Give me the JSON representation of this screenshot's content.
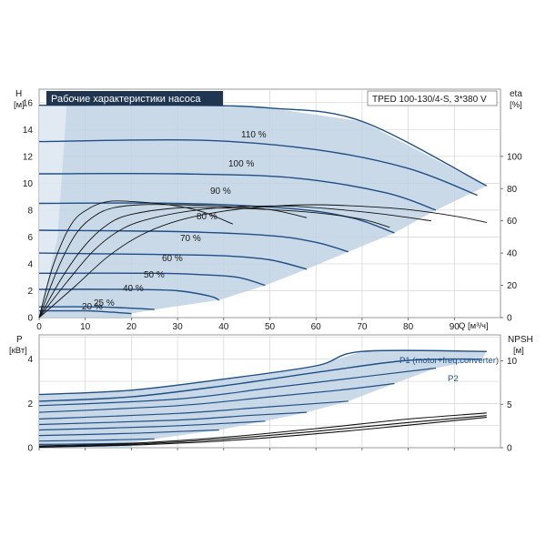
{
  "title": "Рабочие характеристики насоса",
  "model": "TPED 100-130/4-S, 3*380 V",
  "colors": {
    "head": "#1e4f86",
    "area": "#bfd2e4",
    "eff": "#111111",
    "title_bg": "#1f3550"
  },
  "chart_data": [
    {
      "type": "line",
      "name": "head",
      "y_axis_label": "H",
      "y_axis_unit": "[м]",
      "right_axis_label": "eta",
      "right_axis_unit": "[%]",
      "x_axis_label": "Q [м³/ч]",
      "xlim": [
        0,
        100
      ],
      "ylim": [
        0,
        17
      ],
      "x_ticks": [
        0,
        10,
        20,
        30,
        40,
        50,
        60,
        70,
        80,
        90
      ],
      "y_ticks": [
        0,
        2,
        4,
        6,
        8,
        10,
        12,
        14,
        16
      ],
      "right_ticks": [
        0,
        20,
        40,
        60,
        80,
        100
      ],
      "grid": true,
      "speed_curves": [
        {
          "label": "110 %",
          "points": [
            [
              0,
              15.8
            ],
            [
              30,
              15.8
            ],
            [
              50,
              15.6
            ],
            [
              70,
              14.6
            ],
            [
              97,
              9.8
            ]
          ]
        },
        {
          "label": "100 %",
          "points": [
            [
              0,
              13.1
            ],
            [
              35,
              13.2
            ],
            [
              60,
              12.5
            ],
            [
              80,
              11.1
            ],
            [
              95,
              9.1
            ]
          ]
        },
        {
          "label": "90 %",
          "points": [
            [
              0,
              10.7
            ],
            [
              30,
              10.7
            ],
            [
              55,
              10.4
            ],
            [
              75,
              9.3
            ],
            [
              86,
              8.0
            ]
          ]
        },
        {
          "label": "80 %",
          "points": [
            [
              0,
              8.5
            ],
            [
              30,
              8.5
            ],
            [
              55,
              8.1
            ],
            [
              68,
              7.4
            ],
            [
              77,
              6.3
            ]
          ]
        },
        {
          "label": "70 %",
          "points": [
            [
              0,
              6.5
            ],
            [
              30,
              6.4
            ],
            [
              50,
              6.1
            ],
            [
              60,
              5.6
            ],
            [
              67,
              4.9
            ]
          ]
        },
        {
          "label": "60 %",
          "points": [
            [
              0,
              4.8
            ],
            [
              25,
              4.7
            ],
            [
              40,
              4.6
            ],
            [
              50,
              4.3
            ],
            [
              58,
              3.6
            ]
          ]
        },
        {
          "label": "50 %",
          "points": [
            [
              0,
              3.3
            ],
            [
              25,
              3.3
            ],
            [
              35,
              3.2
            ],
            [
              43,
              3.0
            ],
            [
              49,
              2.4
            ]
          ]
        },
        {
          "label": "40 %",
          "points": [
            [
              0,
              2.1
            ],
            [
              20,
              2.1
            ],
            [
              30,
              2.0
            ],
            [
              37,
              1.6
            ],
            [
              39,
              1.3
            ]
          ]
        },
        {
          "label": "25 %",
          "points": [
            [
              0,
              0.8
            ],
            [
              12,
              0.8
            ],
            [
              20,
              0.7
            ],
            [
              25,
              0.6
            ]
          ]
        },
        {
          "label": "20 %",
          "points": [
            [
              0,
              0.5
            ],
            [
              10,
              0.5
            ],
            [
              16,
              0.4
            ],
            [
              20,
              0.3
            ]
          ]
        }
      ],
      "efficiency_curves": [
        [
          [
            0,
            0
          ],
          [
            5,
            25
          ],
          [
            10,
            45
          ],
          [
            15,
            58
          ],
          [
            20,
            64
          ],
          [
            30,
            68
          ],
          [
            40,
            68
          ],
          [
            50,
            67
          ],
          [
            60,
            65
          ],
          [
            70,
            61
          ],
          [
            76,
            56
          ]
        ],
        [
          [
            0,
            0
          ],
          [
            6,
            22
          ],
          [
            12,
            42
          ],
          [
            18,
            55
          ],
          [
            25,
            62
          ],
          [
            35,
            67
          ],
          [
            45,
            69
          ],
          [
            55,
            69
          ],
          [
            65,
            67
          ],
          [
            75,
            64
          ],
          [
            85,
            60
          ]
        ],
        [
          [
            0,
            0
          ],
          [
            8,
            20
          ],
          [
            15,
            38
          ],
          [
            22,
            51
          ],
          [
            30,
            60
          ],
          [
            40,
            66
          ],
          [
            50,
            69
          ],
          [
            60,
            70
          ],
          [
            70,
            69
          ],
          [
            80,
            67
          ],
          [
            90,
            63
          ],
          [
            97,
            59
          ]
        ],
        [
          [
            0,
            0
          ],
          [
            4,
            30
          ],
          [
            8,
            52
          ],
          [
            12,
            63
          ],
          [
            16,
            68
          ],
          [
            22,
            70
          ],
          [
            30,
            70
          ],
          [
            40,
            69
          ],
          [
            50,
            67
          ],
          [
            58,
            62
          ]
        ],
        [
          [
            0,
            0
          ],
          [
            3,
            32
          ],
          [
            7,
            58
          ],
          [
            11,
            68
          ],
          [
            15,
            72
          ],
          [
            20,
            72
          ],
          [
            28,
            70
          ],
          [
            35,
            66
          ],
          [
            42,
            58
          ]
        ]
      ],
      "region": [
        [
          0,
          0
        ],
        [
          0,
          15.8
        ],
        [
          30,
          15.8
        ],
        [
          50,
          15.6
        ],
        [
          70,
          14.6
        ],
        [
          97,
          9.8
        ],
        [
          86,
          8.0
        ],
        [
          77,
          6.3
        ],
        [
          67,
          4.9
        ],
        [
          58,
          3.6
        ],
        [
          49,
          2.4
        ],
        [
          39,
          1.3
        ],
        [
          25,
          0.6
        ],
        [
          20,
          0.3
        ],
        [
          20,
          0
        ]
      ]
    },
    {
      "type": "line",
      "name": "power",
      "y_axis_label": "P",
      "y_axis_unit": "[кВт]",
      "right_axis_label": "NPSH",
      "right_axis_unit": "[м]",
      "xlim": [
        0,
        100
      ],
      "ylim": [
        0,
        5.1
      ],
      "x_ticks": [
        0,
        10,
        20,
        30,
        40,
        50,
        60,
        70,
        80,
        90
      ],
      "y_ticks": [
        0,
        2,
        4
      ],
      "right_ticks": [
        0,
        5,
        10
      ],
      "right_lim": [
        0,
        13
      ],
      "grid": true,
      "annotations": [
        "P1 (motor+freq.converter)",
        "P2"
      ],
      "power_curves": [
        {
          "name": "P1",
          "points": [
            [
              0,
              2.4
            ],
            [
              20,
              2.6
            ],
            [
              40,
              3.1
            ],
            [
              60,
              3.7
            ],
            [
              70,
              4.35
            ],
            [
              97,
              4.35
            ]
          ]
        },
        {
          "name": "P2",
          "points": [
            [
              0,
              2.1
            ],
            [
              20,
              2.3
            ],
            [
              40,
              2.8
            ],
            [
              60,
              3.4
            ],
            [
              80,
              3.95
            ],
            [
              96,
              4.0
            ]
          ]
        },
        {
          "points": [
            [
              0,
              1.9
            ],
            [
              30,
              2.2
            ],
            [
              50,
              2.7
            ],
            [
              70,
              3.2
            ],
            [
              86,
              3.6
            ]
          ]
        },
        {
          "points": [
            [
              0,
              1.6
            ],
            [
              30,
              1.9
            ],
            [
              50,
              2.3
            ],
            [
              65,
              2.6
            ],
            [
              77,
              2.9
            ]
          ]
        },
        {
          "points": [
            [
              0,
              1.3
            ],
            [
              30,
              1.55
            ],
            [
              50,
              1.85
            ],
            [
              67,
              2.1
            ]
          ]
        },
        {
          "points": [
            [
              0,
              1.05
            ],
            [
              30,
              1.25
            ],
            [
              45,
              1.45
            ],
            [
              58,
              1.6
            ]
          ]
        },
        {
          "points": [
            [
              0,
              0.8
            ],
            [
              25,
              0.95
            ],
            [
              40,
              1.1
            ],
            [
              49,
              1.2
            ]
          ]
        },
        {
          "points": [
            [
              0,
              0.55
            ],
            [
              20,
              0.65
            ],
            [
              32,
              0.75
            ],
            [
              39,
              0.8
            ]
          ]
        },
        {
          "points": [
            [
              0,
              0.3
            ],
            [
              15,
              0.35
            ],
            [
              25,
              0.4
            ]
          ]
        },
        {
          "points": [
            [
              0,
              0.15
            ],
            [
              10,
              0.17
            ],
            [
              20,
              0.2
            ]
          ]
        }
      ],
      "npsh_curves": [
        [
          [
            0,
            0.2
          ],
          [
            20,
            0.5
          ],
          [
            40,
            1.2
          ],
          [
            60,
            2.2
          ],
          [
            80,
            3.3
          ],
          [
            97,
            4.0
          ]
        ],
        [
          [
            0,
            0.1
          ],
          [
            20,
            0.4
          ],
          [
            40,
            1.0
          ],
          [
            60,
            1.9
          ],
          [
            80,
            2.9
          ],
          [
            97,
            3.7
          ]
        ],
        [
          [
            0,
            0.05
          ],
          [
            20,
            0.3
          ],
          [
            40,
            0.8
          ],
          [
            60,
            1.6
          ],
          [
            80,
            2.6
          ],
          [
            97,
            3.5
          ]
        ]
      ],
      "region": [
        [
          0,
          0
        ],
        [
          0,
          2.4
        ],
        [
          20,
          2.6
        ],
        [
          40,
          3.1
        ],
        [
          60,
          3.7
        ],
        [
          70,
          4.35
        ],
        [
          97,
          4.35
        ],
        [
          96,
          4.0
        ],
        [
          86,
          3.6
        ],
        [
          77,
          2.9
        ],
        [
          67,
          2.1
        ],
        [
          58,
          1.6
        ],
        [
          49,
          1.2
        ],
        [
          39,
          0.8
        ],
        [
          25,
          0.4
        ],
        [
          20,
          0.2
        ],
        [
          20,
          0
        ]
      ]
    }
  ]
}
